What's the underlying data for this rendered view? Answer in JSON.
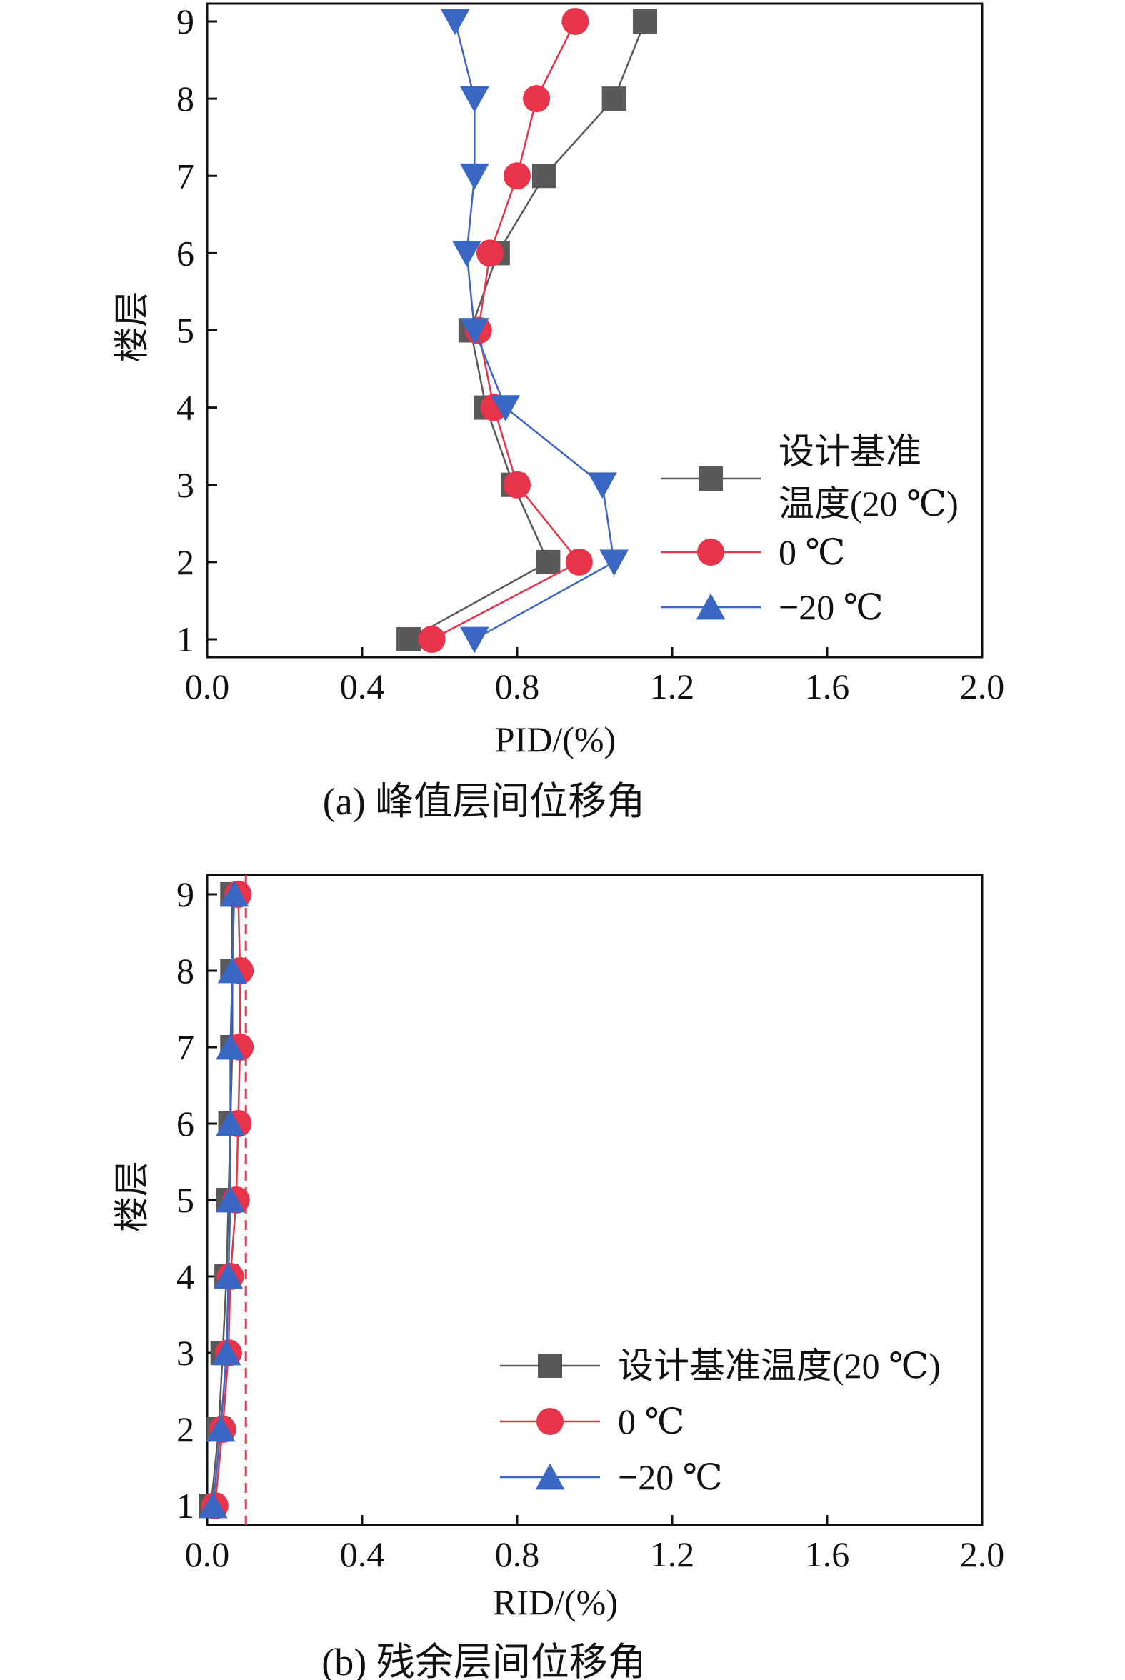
{
  "colors": {
    "design_temp": "#595959",
    "zero": "#e8344a",
    "minus20": "#3a66c4",
    "limit": "#e8344a",
    "axis": "#111111"
  },
  "chart_data": [
    {
      "type": "line",
      "caption": "(a) 峰值层间位移角",
      "xlabel": "PID/(%)",
      "ylabel": "楼层",
      "xlim": [
        0.0,
        2.0
      ],
      "ylim": [
        1,
        9
      ],
      "x_ticks": [
        "0.0",
        "0.4",
        "0.8",
        "1.2",
        "1.6",
        "2.0"
      ],
      "y_ticks": [
        "1",
        "2",
        "3",
        "4",
        "5",
        "6",
        "7",
        "8",
        "9"
      ],
      "legend_position": "lower-right",
      "series": [
        {
          "name": "设计基准温度(20 ℃)",
          "legend_lines": [
            "设计基准",
            "温度(20 ℃)"
          ],
          "marker": "square",
          "color_key": "design_temp",
          "floors": [
            1,
            2,
            3,
            4,
            5,
            6,
            7,
            8,
            9
          ],
          "values": [
            0.52,
            0.88,
            0.79,
            0.72,
            0.68,
            0.75,
            0.87,
            1.05,
            1.13
          ]
        },
        {
          "name": "0 ℃",
          "legend_lines": [
            "0 ℃"
          ],
          "marker": "circle",
          "color_key": "zero",
          "floors": [
            1,
            2,
            3,
            4,
            5,
            6,
            7,
            8,
            9
          ],
          "values": [
            0.58,
            0.96,
            0.8,
            0.74,
            0.7,
            0.73,
            0.8,
            0.85,
            0.95
          ]
        },
        {
          "name": "−20 ℃",
          "legend_lines": [
            "−20 ℃"
          ],
          "marker": "triangle-down",
          "legend_marker": "triangle-up",
          "color_key": "minus20",
          "floors": [
            1,
            2,
            3,
            4,
            5,
            6,
            7,
            8,
            9
          ],
          "values": [
            0.69,
            1.05,
            1.02,
            0.77,
            0.69,
            0.67,
            0.69,
            0.69,
            0.64
          ]
        }
      ]
    },
    {
      "type": "line",
      "caption": "(b) 残余层间位移角",
      "xlabel": "RID/(%)",
      "ylabel": "楼层",
      "xlim": [
        0.0,
        2.0
      ],
      "ylim": [
        1,
        9
      ],
      "x_ticks": [
        "0.0",
        "0.4",
        "0.8",
        "1.2",
        "1.6",
        "2.0"
      ],
      "y_ticks": [
        "1",
        "2",
        "3",
        "4",
        "5",
        "6",
        "7",
        "8",
        "9"
      ],
      "legend_position": "lower-right",
      "reference_line": {
        "x": 0.1,
        "style": "dashed",
        "color_key": "limit"
      },
      "series": [
        {
          "name": "设计基准温度(20 ℃)",
          "legend_lines": [
            "设计基准温度(20 ℃)"
          ],
          "marker": "square",
          "color_key": "design_temp",
          "floors": [
            1,
            2,
            3,
            4,
            5,
            6,
            7,
            8,
            9
          ],
          "values": [
            0.01,
            0.03,
            0.04,
            0.05,
            0.055,
            0.06,
            0.065,
            0.065,
            0.065
          ]
        },
        {
          "name": "0 ℃",
          "legend_lines": [
            "0 ℃"
          ],
          "marker": "circle",
          "color_key": "zero",
          "floors": [
            1,
            2,
            3,
            4,
            5,
            6,
            7,
            8,
            9
          ],
          "values": [
            0.02,
            0.04,
            0.055,
            0.06,
            0.075,
            0.08,
            0.085,
            0.085,
            0.08
          ]
        },
        {
          "name": "−20 ℃",
          "legend_lines": [
            "−20 ℃"
          ],
          "marker": "triangle-up",
          "color_key": "minus20",
          "floors": [
            1,
            2,
            3,
            4,
            5,
            6,
            7,
            8,
            9
          ],
          "values": [
            0.015,
            0.035,
            0.05,
            0.055,
            0.06,
            0.06,
            0.06,
            0.065,
            0.07
          ]
        }
      ]
    }
  ]
}
